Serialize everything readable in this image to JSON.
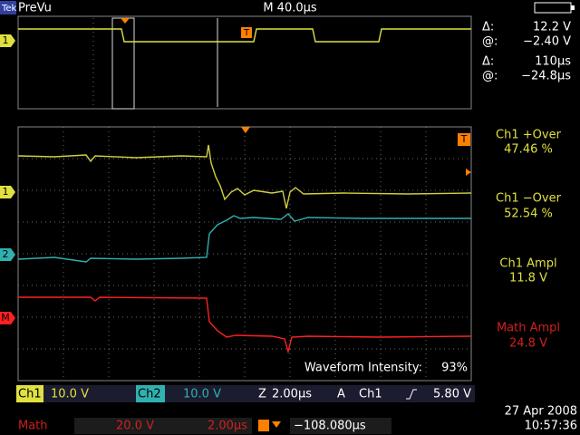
{
  "header": {
    "brand": "Tek",
    "mode": "PreVu",
    "timebase": "M 40.0µs"
  },
  "cursors": [
    {
      "label": "Δ:",
      "value": "12.2 V"
    },
    {
      "label": "@:",
      "value": "−2.40 V"
    },
    {
      "label": "Δ:",
      "value": "110µs"
    },
    {
      "label": "@:",
      "value": "−24.8µs"
    }
  ],
  "measurements": [
    {
      "name": "Ch1 +Over",
      "value": "47.46 %"
    },
    {
      "name": "Ch1 −Over",
      "value": "52.54 %"
    },
    {
      "name": "Ch1 Ampl",
      "value": "11.8 V"
    },
    {
      "name": "Math Ampl",
      "value": "24.8 V"
    }
  ],
  "markers": {
    "ch1": "1",
    "ch2": "2",
    "math": "M",
    "trigger": "T"
  },
  "intensity": {
    "label": "Waveform Intensity:",
    "value": "93%"
  },
  "channel_bar": {
    "ch1": "Ch1",
    "ch1_scale": "10.0 V",
    "ch2": "Ch2",
    "ch2_scale": "10.0 V",
    "zoom": "Z",
    "zoom_scale": "2.00µs",
    "trigger_mode": "A",
    "trigger_source": "Ch1",
    "trigger_level": "5.80 V"
  },
  "math_bar": {
    "label": "Math",
    "scale": "20.0 V",
    "time": "2.00µs",
    "position": "−108.080µs"
  },
  "datetime": {
    "date": "27 Apr 2008",
    "time": "10:57:36"
  }
}
